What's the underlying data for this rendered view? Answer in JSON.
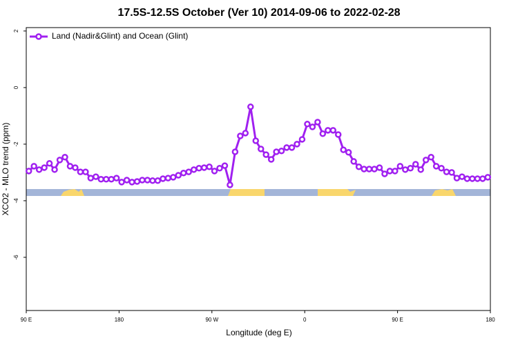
{
  "chart_data": {
    "type": "line",
    "title": "17.5S-12.5S October (Ver 10)   2014-09-06 to 2022-02-28",
    "x_label": "Longitude (deg E)",
    "y_label": "XCO2 - MLO trend (ppm)",
    "x": [
      92.5,
      97.5,
      102.5,
      107.5,
      112.5,
      117.5,
      122.5,
      127.5,
      132.5,
      137.5,
      142.5,
      147.5,
      152.5,
      157.5,
      162.5,
      167.5,
      172.5,
      177.5,
      182.5,
      187.5,
      192.5,
      197.5,
      202.5,
      207.5,
      212.5,
      217.5,
      222.5,
      227.5,
      232.5,
      237.5,
      242.5,
      247.5,
      252.5,
      257.5,
      262.5,
      267.5,
      272.5,
      277.5,
      282.5,
      287.5,
      292.5,
      297.5,
      302.5,
      307.5,
      312.5,
      317.5,
      322.5,
      327.5,
      332.5,
      337.5,
      342.5,
      347.5,
      352.5,
      357.5,
      362.5,
      367.5,
      372.5,
      377.5,
      382.5,
      387.5,
      392.5,
      397.5,
      402.5,
      407.5,
      412.5,
      417.5,
      422.5,
      427.5,
      432.5,
      437.5,
      442.5,
      447.5,
      452.5,
      457.5,
      462.5,
      467.5,
      472.5,
      477.5,
      482.5,
      487.5,
      492.5,
      497.5,
      502.5,
      507.5,
      512.5,
      517.5,
      522.5,
      527.5,
      532.5,
      537.5
    ],
    "series": [
      {
        "name": "Land (Nadir&Glint) and Ocean (Glint)",
        "color": "#a020f0",
        "values": [
          -2.95,
          -2.78,
          -2.9,
          -2.83,
          -2.68,
          -2.9,
          -2.56,
          -2.46,
          -2.78,
          -2.83,
          -2.98,
          -2.98,
          -3.2,
          -3.15,
          -3.24,
          -3.24,
          -3.24,
          -3.2,
          -3.34,
          -3.27,
          -3.34,
          -3.32,
          -3.27,
          -3.27,
          -3.29,
          -3.29,
          -3.22,
          -3.2,
          -3.17,
          -3.1,
          -3.02,
          -2.98,
          -2.9,
          -2.85,
          -2.83,
          -2.8,
          -2.95,
          -2.85,
          -2.76,
          -3.44,
          -2.27,
          -1.71,
          -1.61,
          -0.68,
          -1.88,
          -2.17,
          -2.37,
          -2.54,
          -2.27,
          -2.24,
          -2.12,
          -2.12,
          -2.0,
          -1.83,
          -1.29,
          -1.39,
          -1.22,
          -1.63,
          -1.51,
          -1.51,
          -1.66,
          -2.2,
          -2.29,
          -2.61,
          -2.8,
          -2.88,
          -2.88,
          -2.88,
          -2.83,
          -3.05,
          -2.95,
          -2.95,
          -2.78,
          -2.9,
          -2.85,
          -2.71,
          -2.9,
          -2.56,
          -2.46,
          -2.78,
          -2.85,
          -2.98,
          -3.0,
          -3.2,
          -3.15,
          -3.22,
          -3.22,
          -3.22,
          -3.22,
          -3.17
        ]
      }
    ],
    "xlim": [
      90,
      540
    ],
    "xticks": [
      {
        "value": 90,
        "label": "90 E"
      },
      180,
      {
        "value": 270,
        "label": "90 W"
      },
      {
        "value": 360,
        "label": "0"
      },
      {
        "value": 450,
        "label": "90 E"
      },
      {
        "value": 540,
        "label": "180"
      }
    ],
    "ylim": [
      -7.88,
      2.12
    ],
    "yticks": [
      2,
      0,
      -2,
      -4,
      -6
    ],
    "legend": "top-left"
  }
}
